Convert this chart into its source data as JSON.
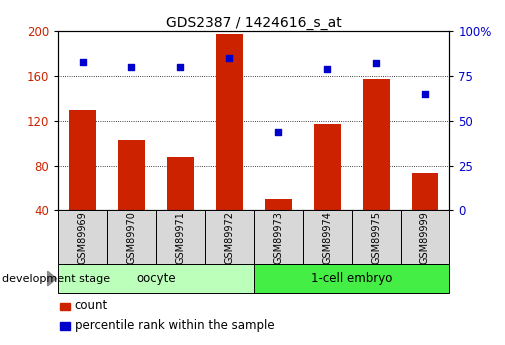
{
  "title": "GDS2387 / 1424616_s_at",
  "samples": [
    "GSM89969",
    "GSM89970",
    "GSM89971",
    "GSM89972",
    "GSM89973",
    "GSM89974",
    "GSM89975",
    "GSM89999"
  ],
  "count": [
    130,
    103,
    88,
    197,
    50,
    117,
    157,
    73
  ],
  "percentile": [
    83,
    80,
    80,
    85,
    44,
    79,
    82,
    65
  ],
  "bar_color": "#cc2200",
  "dot_color": "#0000cc",
  "left_ylim": [
    40,
    200
  ],
  "right_ylim": [
    0,
    100
  ],
  "left_yticks": [
    40,
    80,
    120,
    160,
    200
  ],
  "right_yticks": [
    0,
    25,
    50,
    75,
    100
  ],
  "right_yticklabels": [
    "0",
    "25",
    "50",
    "75",
    "100%"
  ],
  "groups": [
    {
      "label": "oocyte",
      "indices": [
        0,
        1,
        2,
        3
      ],
      "color": "#bbffbb"
    },
    {
      "label": "1-cell embryo",
      "indices": [
        4,
        5,
        6,
        7
      ],
      "color": "#44ee44"
    }
  ],
  "group_label": "development stage",
  "legend_count_label": "count",
  "legend_percentile_label": "percentile rank within the sample",
  "tick_label_color_left": "#cc2200",
  "tick_label_color_right": "#0000cc",
  "title_fontsize": 10,
  "sample_box_color": "#d8d8d8",
  "bg_color": "#ffffff"
}
